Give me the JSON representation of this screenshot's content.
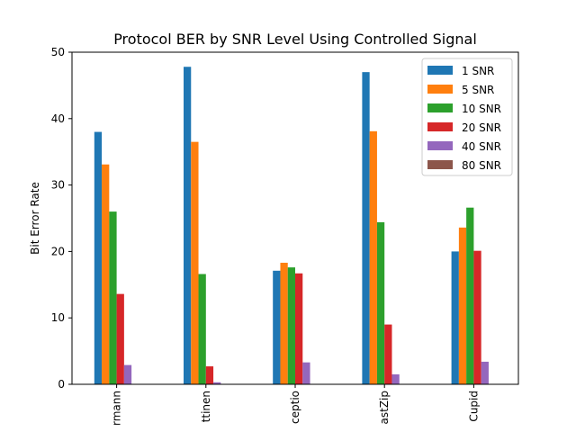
{
  "chart_data": {
    "type": "bar",
    "title": "Protocol BER by SNR Level Using Controlled Signal",
    "xlabel": "",
    "ylabel": "Bit Error Rate",
    "ylim": [
      0,
      50
    ],
    "yticks": [
      0,
      10,
      20,
      30,
      40,
      50
    ],
    "categories": [
      "rmann",
      "ttinen",
      "ceptio",
      "astZip",
      "Cupid"
    ],
    "legend_position": "top-right",
    "grid": false,
    "series": [
      {
        "name": "1 SNR",
        "color": "#1f77b4",
        "values": [
          38.0,
          47.8,
          17.1,
          47.0,
          20.0
        ]
      },
      {
        "name": "5 SNR",
        "color": "#ff7f0e",
        "values": [
          33.1,
          36.5,
          18.3,
          38.1,
          23.6
        ]
      },
      {
        "name": "10 SNR",
        "color": "#2ca02c",
        "values": [
          26.0,
          16.6,
          17.6,
          24.4,
          26.6
        ]
      },
      {
        "name": "20 SNR",
        "color": "#d62728",
        "values": [
          13.6,
          2.7,
          16.7,
          9.0,
          20.1
        ]
      },
      {
        "name": "40 SNR",
        "color": "#9467bd",
        "values": [
          2.9,
          0.3,
          3.3,
          1.5,
          3.4
        ]
      },
      {
        "name": "80 SNR",
        "color": "#8c564b",
        "values": [
          0,
          0,
          0,
          0,
          0
        ]
      }
    ]
  }
}
